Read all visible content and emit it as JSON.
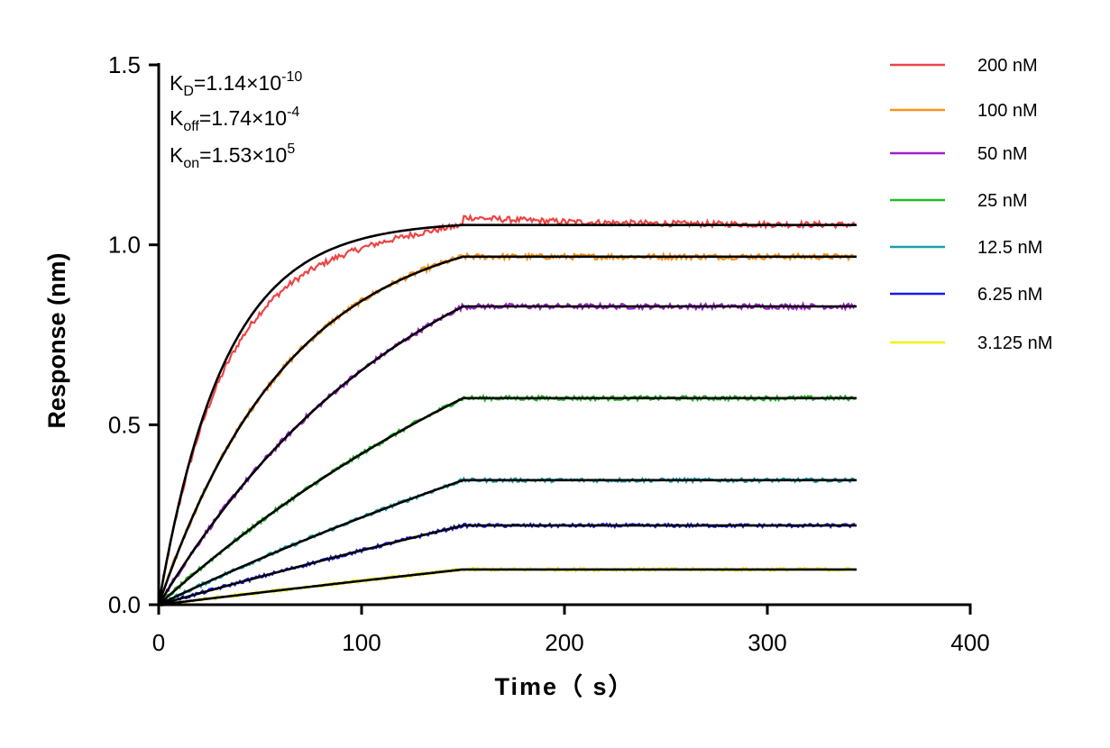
{
  "chart_data": {
    "type": "line",
    "title": "",
    "xlabel": "Time（ s）",
    "ylabel": "Response (nm)",
    "xlim": [
      0,
      400
    ],
    "ylim": [
      0,
      1.5
    ],
    "xticks": [
      "0",
      "100",
      "200",
      "300",
      "400"
    ],
    "yticks": [
      "0.0",
      "0.5",
      "1.0",
      "1.5"
    ],
    "grid": false,
    "legend_position": "top-right",
    "association_end_s": 150,
    "dissociation_end_s": 344,
    "annotations": {
      "kd": {
        "base": "K",
        "sub": "D",
        "value": "=1.14×10",
        "exp": "-10"
      },
      "koff": {
        "base": "K",
        "sub": "off",
        "value": "=1.74×10",
        "exp": "-4"
      },
      "kon": {
        "base": "K",
        "sub": "on",
        "value": "=1.53×10",
        "exp": "5"
      }
    },
    "fit_color": "#000000",
    "sample_times": [
      0,
      25,
      50,
      75,
      100,
      125,
      150,
      200,
      250,
      300,
      344
    ],
    "series": [
      {
        "name": "200 nM",
        "color": "#ee4444",
        "kobs": 0.03077,
        "plateau": 1.055,
        "values": [
          0,
          0.572,
          0.836,
          0.96,
          1.017,
          1.043,
          1.055,
          1.055,
          1.055,
          1.055,
          1.055
        ]
      },
      {
        "name": "100 nM",
        "color": "#f7931e",
        "kobs": 0.01547,
        "plateau": 0.967,
        "values": [
          0,
          0.344,
          0.578,
          0.736,
          0.844,
          0.917,
          0.967,
          0.967,
          0.967,
          0.967,
          0.967
        ]
      },
      {
        "name": "50 nM",
        "color": "#a020d0",
        "kobs": 0.00782,
        "plateau": 0.829,
        "values": [
          0,
          0.213,
          0.388,
          0.533,
          0.651,
          0.749,
          0.829,
          0.829,
          0.829,
          0.829,
          0.829
        ]
      },
      {
        "name": "25 nM",
        "color": "#22bb22",
        "kobs": 0.004,
        "plateau": 0.574,
        "values": [
          0,
          0.121,
          0.231,
          0.33,
          0.419,
          0.501,
          0.574,
          0.574,
          0.574,
          0.574,
          0.574
        ]
      },
      {
        "name": "12.5 nM",
        "color": "#1a9fa8",
        "kobs": 0.00209,
        "plateau": 0.346,
        "values": [
          0,
          0.065,
          0.128,
          0.186,
          0.243,
          0.296,
          0.346,
          0.346,
          0.346,
          0.346,
          0.346
        ]
      },
      {
        "name": "6.25 nM",
        "color": "#1a1aee",
        "kobs": 0.00113,
        "plateau": 0.22,
        "values": [
          0,
          0.039,
          0.077,
          0.115,
          0.151,
          0.186,
          0.22,
          0.22,
          0.22,
          0.22,
          0.22
        ]
      },
      {
        "name": "3.125 nM",
        "color": "#f2f20a",
        "kobs": 0.00065,
        "plateau": 0.098,
        "values": [
          0,
          0.017,
          0.033,
          0.049,
          0.066,
          0.082,
          0.098,
          0.098,
          0.098,
          0.098,
          0.098
        ]
      }
    ]
  }
}
